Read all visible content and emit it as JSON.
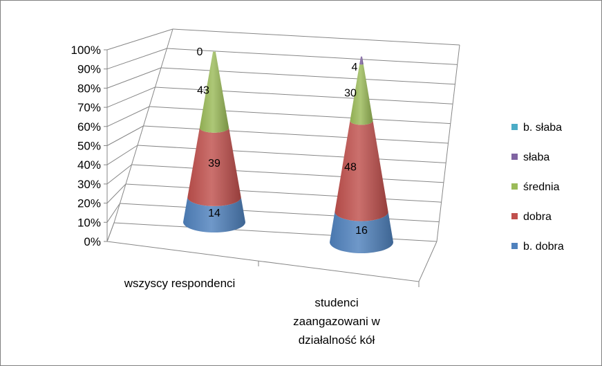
{
  "chart_data": {
    "type": "bar",
    "subtype": "3d-stacked-100-cone",
    "title": "",
    "xlabel": "",
    "ylabel": "",
    "ylim": [
      0,
      100
    ],
    "y_ticks": [
      "0%",
      "10%",
      "20%",
      "30%",
      "40%",
      "50%",
      "60%",
      "70%",
      "80%",
      "90%",
      "100%"
    ],
    "categories": [
      [
        "wszyscy respondenci"
      ],
      [
        "studenci",
        "zaangazowani w",
        "działalność kół"
      ]
    ],
    "series": [
      {
        "name": "b. dobra",
        "color": "#4F81BD",
        "values": [
          14,
          16
        ]
      },
      {
        "name": "dobra",
        "color": "#C0504D",
        "values": [
          39,
          48
        ]
      },
      {
        "name": "średnia",
        "color": "#9BBB59",
        "values": [
          43,
          30
        ]
      },
      {
        "name": "słaba",
        "color": "#8064A2",
        "values": [
          0,
          4
        ]
      },
      {
        "name": "b. słaba",
        "color": "#4BACC6",
        "values": [
          0,
          0
        ]
      }
    ],
    "data_labels": [
      [
        "14",
        "39",
        "43",
        "",
        "0"
      ],
      [
        "16",
        "48",
        "30",
        "4",
        ""
      ]
    ],
    "legend_position": "right",
    "legend_order": [
      "b. słaba",
      "słaba",
      "średnia",
      "dobra",
      "b. dobra"
    ],
    "grid": true
  }
}
